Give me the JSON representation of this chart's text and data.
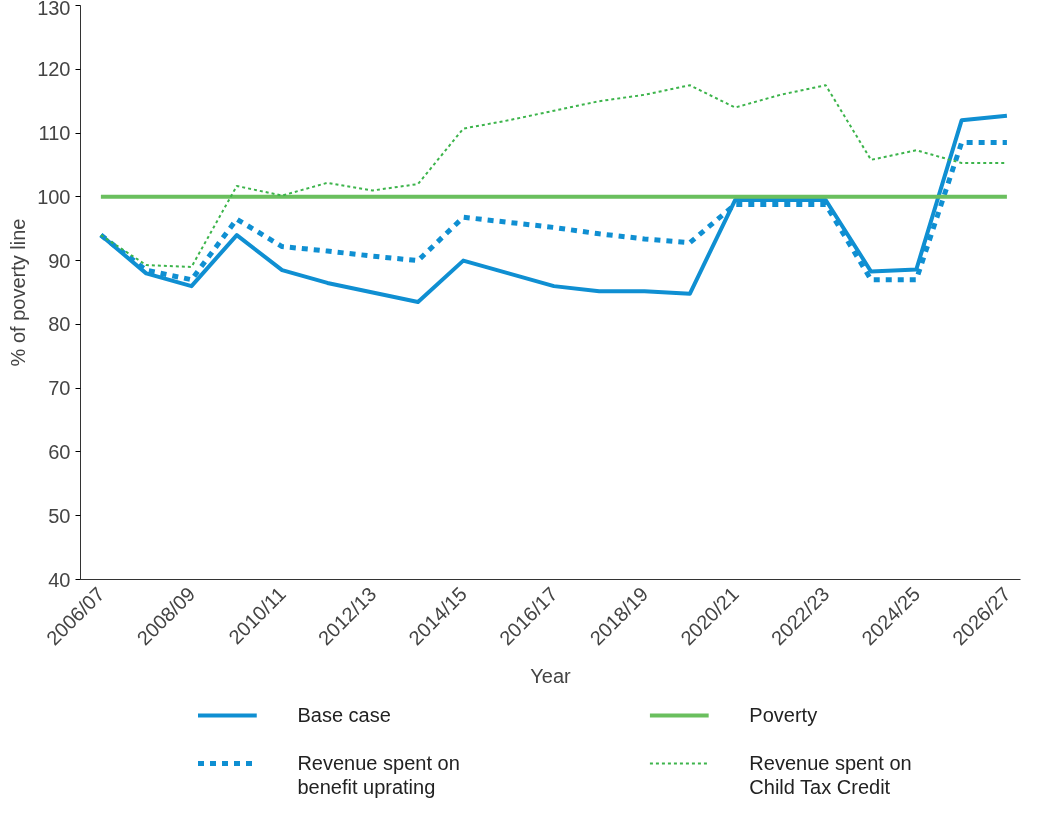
{
  "chart_data": {
    "type": "line",
    "xlabel": "Year",
    "ylabel": "% of poverty line",
    "categories": [
      "2006/07",
      null,
      "2008/09",
      null,
      "2010/11",
      null,
      "2012/13",
      null,
      "2014/15",
      null,
      "2016/17",
      null,
      "2018/19",
      null,
      "2020/21",
      null,
      "2022/23",
      null,
      "2024/25",
      null,
      "2026/27"
    ],
    "ylim": [
      40,
      130
    ],
    "yticks": [
      40,
      50,
      60,
      70,
      80,
      90,
      100,
      110,
      120,
      130
    ],
    "grid": false,
    "legend": "bottom",
    "marker": "none",
    "series": [
      {
        "name": "Base case",
        "color": "#0f8fd2",
        "line_style": "solid",
        "values": [
          94,
          88,
          86,
          94,
          88.5,
          86.5,
          85,
          83.5,
          90,
          88,
          86,
          85.2,
          85.2,
          84.8,
          99.5,
          99.5,
          99.5,
          88.3,
          88.6,
          112,
          112.7
        ]
      },
      {
        "name": "Revenue spent on\nbenefit uprating",
        "color": "#0f8fd2",
        "line_style": "dashed",
        "values": [
          94,
          88.5,
          87,
          96.5,
          92.2,
          91.5,
          90.7,
          90,
          96.8,
          96,
          95.2,
          94.2,
          93.4,
          92.8,
          98.8,
          98.8,
          98.8,
          87,
          87,
          108.5,
          108.5
        ]
      },
      {
        "name": "Poverty",
        "color": "#6abf5e",
        "line_style": "solid",
        "values": [
          100,
          100,
          100,
          100,
          100,
          100,
          100,
          100,
          100,
          100,
          100,
          100,
          100,
          100,
          100,
          100,
          100,
          100,
          100,
          100,
          100
        ]
      },
      {
        "name": "Revenue spent on\nChild Tax Credit",
        "color": "#3cb44b",
        "line_style": "dotted",
        "values": [
          94,
          89.3,
          89,
          101.7,
          100.2,
          102.2,
          101,
          102,
          110.7,
          112,
          113.5,
          115,
          116,
          117.5,
          114,
          116,
          117.5,
          105.8,
          107.3,
          105.3,
          105.3
        ]
      }
    ]
  }
}
